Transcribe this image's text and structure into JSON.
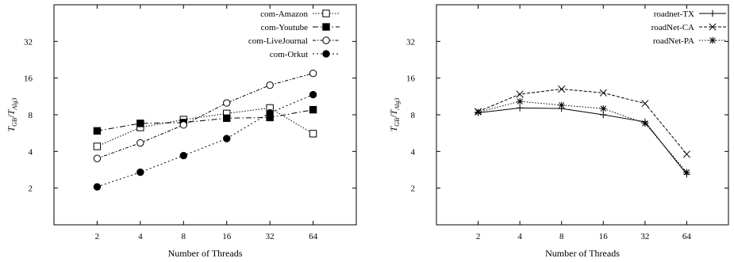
{
  "chart_data": [
    {
      "type": "line",
      "xlabel": "Number of Threads",
      "ylabel": "T_GB/T_Alg3",
      "categories": [
        "2",
        "4",
        "8",
        "16",
        "32",
        "64"
      ],
      "x_tick_labels": [
        "2",
        "4",
        "8",
        "16",
        "32",
        "64"
      ],
      "y_ticks": [
        2,
        4,
        8,
        16,
        32
      ],
      "y_tick_labels": [
        "2",
        "4",
        "8",
        "16",
        "32"
      ],
      "ylim": [
        1.0,
        64
      ],
      "yscale": "log2",
      "legend_position": "top-right",
      "series": [
        {
          "name": "com-Amazon",
          "marker": "open-square",
          "dash": "1.5,2",
          "values": [
            4.4,
            6.3,
            7.3,
            8.2,
            9.1,
            5.6
          ]
        },
        {
          "name": "com-Youtube",
          "marker": "filled-square",
          "dash": "7,3,1.5,3",
          "values": [
            5.9,
            6.8,
            6.9,
            7.5,
            7.6,
            8.8
          ]
        },
        {
          "name": "com-LiveJournal",
          "marker": "open-circle",
          "dash": "4,2,1.5,2",
          "values": [
            3.5,
            4.7,
            6.6,
            10.0,
            14.0,
            17.5
          ]
        },
        {
          "name": "com-Orkut",
          "marker": "filled-circle",
          "dash": "2,3",
          "values": [
            2.05,
            2.7,
            3.7,
            5.1,
            8.3,
            11.7
          ]
        }
      ]
    },
    {
      "type": "line",
      "xlabel": "Number of Threads",
      "ylabel": "T_GB/T_Alg3",
      "categories": [
        "2",
        "4",
        "8",
        "16",
        "32",
        "64"
      ],
      "x_tick_labels": [
        "2",
        "4",
        "8",
        "16",
        "32",
        "64"
      ],
      "y_ticks": [
        2,
        4,
        8,
        16,
        32
      ],
      "y_tick_labels": [
        "2",
        "4",
        "8",
        "16",
        "32"
      ],
      "ylim": [
        1.0,
        64
      ],
      "yscale": "log2",
      "legend_position": "top-right",
      "series": [
        {
          "name": "roadnet-TX",
          "marker": "plus",
          "dash": "",
          "values": [
            8.3,
            9.1,
            9.0,
            8.0,
            7.0,
            2.6
          ]
        },
        {
          "name": "roadNet-CA",
          "marker": "cross",
          "dash": "4,2",
          "values": [
            8.5,
            11.8,
            13.0,
            12.1,
            9.9,
            3.8
          ]
        },
        {
          "name": "roadNet-PA",
          "marker": "asterisk",
          "dash": "1.5,2",
          "values": [
            8.4,
            10.3,
            9.6,
            9.0,
            6.8,
            2.7
          ]
        }
      ]
    }
  ]
}
